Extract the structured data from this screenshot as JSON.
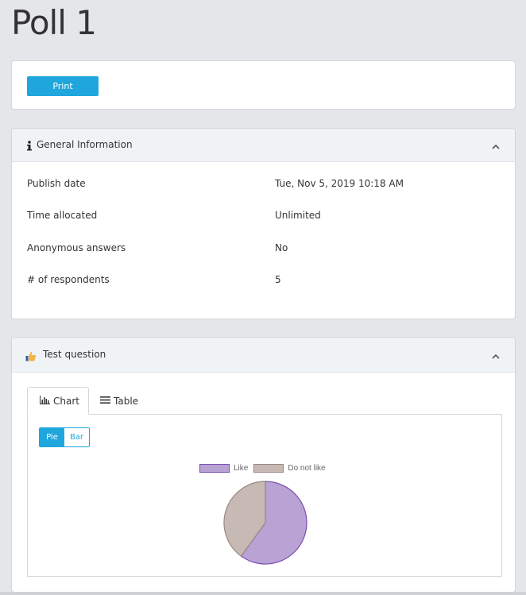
{
  "page": {
    "title": "Poll 1"
  },
  "toolbar": {
    "print_label": "Print"
  },
  "general": {
    "title": "General Information",
    "rows": [
      {
        "label": "Publish date",
        "value": "Tue, Nov 5, 2019 10:18 AM"
      },
      {
        "label": "Time allocated",
        "value": "Unlimited"
      },
      {
        "label": "Anonymous answers",
        "value": "No"
      },
      {
        "label": "# of respondents",
        "value": "5"
      }
    ]
  },
  "question": {
    "title": "Test question",
    "tabs": [
      {
        "label": "Chart",
        "active": true
      },
      {
        "label": "Table",
        "active": false
      }
    ],
    "chart_type_toggle": [
      {
        "label": "Pie",
        "active": true
      },
      {
        "label": "Bar",
        "active": false
      }
    ]
  },
  "chart_data": {
    "type": "pie",
    "title": "",
    "legend": "top",
    "series": [
      {
        "name": "Like",
        "value": 3,
        "color": "#b9a2d4",
        "border": "#7a4fb0"
      },
      {
        "name": "Do not like",
        "value": 2,
        "color": "#c7b9b4",
        "border": "#9a8782"
      }
    ]
  },
  "icons": {
    "info": "info-icon",
    "thumbs_up": "thumbs-up-icon",
    "chevron": "chevron-up-icon",
    "chart": "bar-chart-icon",
    "table": "list-icon"
  },
  "colors": {
    "accent": "#1fa7dd",
    "background": "#e4e6e9"
  }
}
